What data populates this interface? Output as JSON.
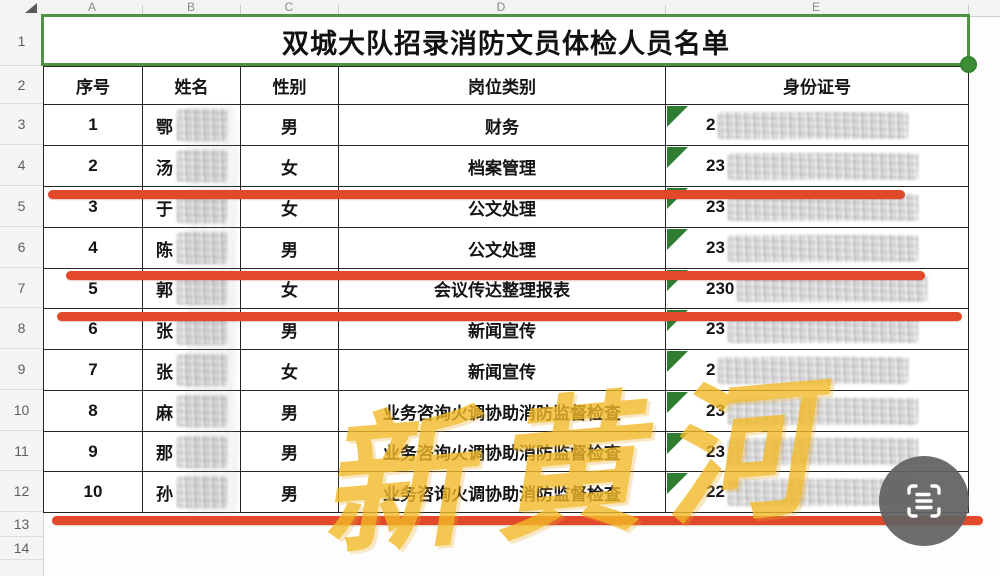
{
  "app": {
    "watermark_text": "新黄河",
    "scan_button_icon": "scan-document-icon",
    "select_all_icon": "select-all-triangle-icon"
  },
  "spreadsheet": {
    "column_letters": [
      "A",
      "B",
      "C",
      "D",
      "E"
    ],
    "row_numbers": [
      "1",
      "2",
      "3",
      "4",
      "5",
      "6",
      "7",
      "8",
      "9",
      "10",
      "11",
      "12",
      "13",
      "14"
    ],
    "title": "双城大队招录消防文员体检人员名单",
    "headers": {
      "serial": "序号",
      "name": "姓名",
      "gender": "性别",
      "job": "岗位类别",
      "id": "身份证号"
    },
    "rows": [
      {
        "serial": "1",
        "surname": "鄂",
        "name_redacted": true,
        "gender": "男",
        "job": "财务",
        "id_prefix": "2",
        "id_redacted": true,
        "text_as_number_flag": true,
        "red_underline": false
      },
      {
        "serial": "2",
        "surname": "汤",
        "name_redacted": true,
        "gender": "女",
        "job": "档案管理",
        "id_prefix": "23",
        "id_redacted": true,
        "text_as_number_flag": true,
        "red_underline": true
      },
      {
        "serial": "3",
        "surname": "于",
        "name_redacted": true,
        "gender": "女",
        "job": "公文处理",
        "id_prefix": "23",
        "id_redacted": true,
        "text_as_number_flag": true,
        "red_underline": false
      },
      {
        "serial": "4",
        "surname": "陈",
        "name_redacted": true,
        "gender": "男",
        "job": "公文处理",
        "id_prefix": "23",
        "id_redacted": true,
        "text_as_number_flag": true,
        "red_underline": true
      },
      {
        "serial": "5",
        "surname": "郭",
        "name_redacted": true,
        "gender": "女",
        "job": "会议传达整理报表",
        "id_prefix": "230",
        "id_redacted": true,
        "text_as_number_flag": true,
        "red_underline": true
      },
      {
        "serial": "6",
        "surname": "张",
        "name_redacted": true,
        "gender": "男",
        "job": "新闻宣传",
        "id_prefix": "23",
        "id_redacted": true,
        "text_as_number_flag": true,
        "red_underline": false
      },
      {
        "serial": "7",
        "surname": "张",
        "name_redacted": true,
        "gender": "女",
        "job": "新闻宣传",
        "id_prefix": "2",
        "id_redacted": true,
        "text_as_number_flag": true,
        "red_underline": false
      },
      {
        "serial": "8",
        "surname": "麻",
        "name_redacted": true,
        "gender": "男",
        "job": "业务咨询火调协助消防监督检查",
        "id_prefix": "23",
        "id_redacted": true,
        "text_as_number_flag": true,
        "red_underline": false
      },
      {
        "serial": "9",
        "surname": "那",
        "name_redacted": true,
        "gender": "男",
        "job": "业务咨询火调协助消防监督检查",
        "id_prefix": "23",
        "id_redacted": true,
        "text_as_number_flag": true,
        "red_underline": false
      },
      {
        "serial": "10",
        "surname": "孙",
        "name_redacted": true,
        "gender": "男",
        "job": "业务咨询火调协助消防监督检查",
        "id_prefix": "22",
        "id_redacted": true,
        "text_as_number_flag": true,
        "red_underline": true
      }
    ],
    "selection": {
      "selected_row": "1",
      "merged_range": "A1:E1",
      "has_fill_handle": true
    }
  },
  "colors": {
    "selection_green": "#4f9242",
    "fill_handle_green": "#3e8c35",
    "text_as_number_triangle_green": "#2e7d33",
    "annotation_red": "#e2492b",
    "watermark_yellow": "#f1ba27",
    "scan_button_gray": "#616161",
    "grid_border": "#242424"
  }
}
